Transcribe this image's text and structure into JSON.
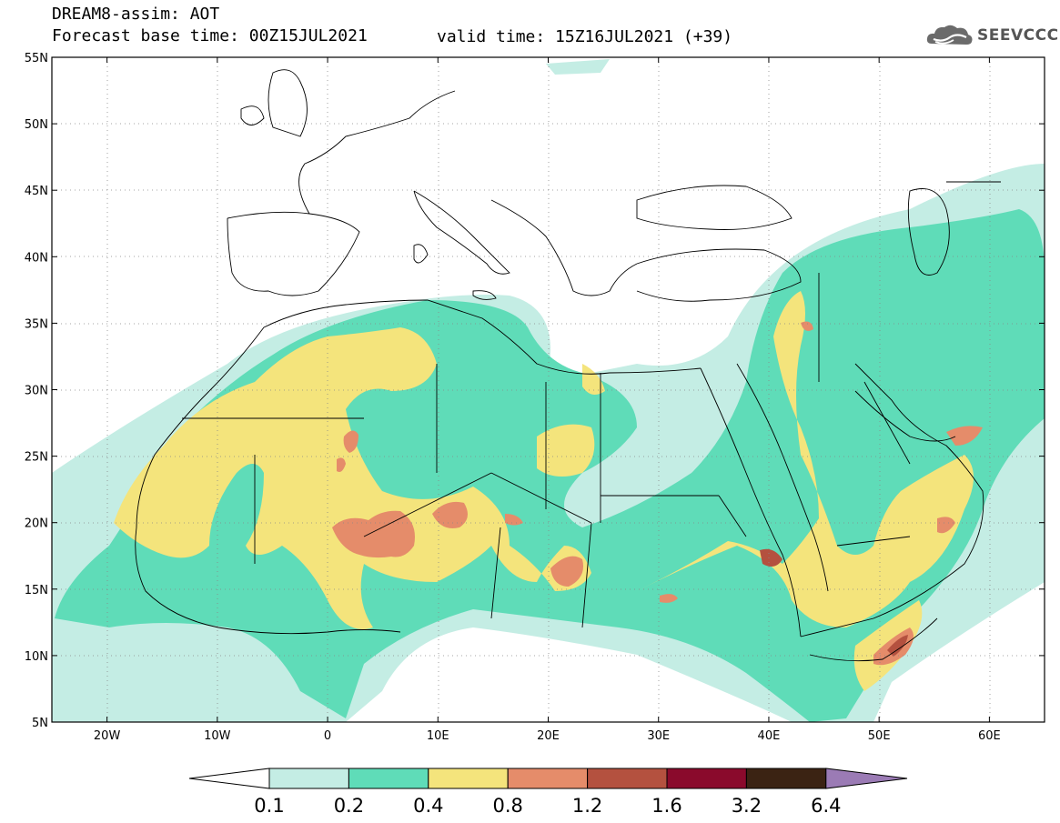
{
  "header": {
    "line1": "DREAM8-assim: AOT",
    "line2": "Forecast base time: 00Z15JUL2021",
    "valid": "valid time: 15Z16JUL2021 (+39)"
  },
  "logo": {
    "text": "SEEVCCC",
    "icon": "cloud-icon"
  },
  "axes": {
    "lat_labels": [
      "55N",
      "50N",
      "45N",
      "40N",
      "35N",
      "30N",
      "25N",
      "20N",
      "15N",
      "10N",
      "5N"
    ],
    "lon_labels": [
      "20W",
      "10W",
      "0",
      "10E",
      "20E",
      "30E",
      "40E",
      "50E",
      "60E"
    ],
    "lat_range": [
      5,
      55
    ],
    "lon_range": [
      -25,
      65
    ]
  },
  "colorbar": {
    "labels": [
      "0.1",
      "0.2",
      "0.4",
      "0.8",
      "1.2",
      "1.6",
      "3.2",
      "6.4"
    ],
    "colors": [
      "#ffffff",
      "#c4ede4",
      "#5fdcb8",
      "#f4e47c",
      "#e58c6a",
      "#b4513f",
      "#8a0a2c",
      "#3b2313",
      "#9b7bb5"
    ]
  }
}
